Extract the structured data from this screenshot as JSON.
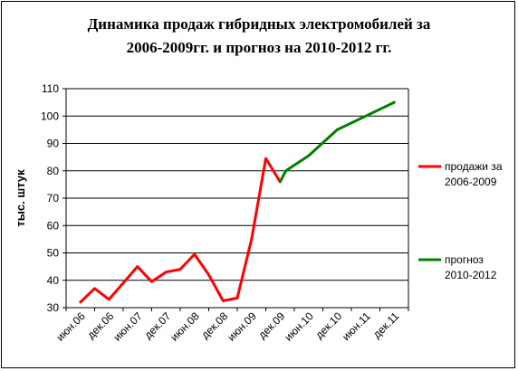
{
  "chart_data": {
    "type": "line",
    "title_line1": "Динамика продаж гибридных электромобилей за",
    "title_line2": "2006-2009гг. и прогноз на 2010-2012 гг.",
    "ylabel": "тыс. штук",
    "xlabel": "",
    "ylim": [
      30,
      110
    ],
    "yticks": [
      30,
      40,
      50,
      60,
      70,
      80,
      90,
      100,
      110
    ],
    "categories": [
      "июн.06",
      "дек.06",
      "июн.07",
      "дек.07",
      "июн.08",
      "дек.08",
      "июн.09",
      "дек.09",
      "июн.10",
      "дек.10",
      "июн.11",
      "дек.11"
    ],
    "grid": "horizontal",
    "legend_position": "right",
    "series": [
      {
        "name": "продажи за 2006-2009",
        "legend_line1": "продажи за",
        "legend_line2": "2006-2009",
        "color": "#ff0000",
        "points": [
          {
            "x": 0.0,
            "y": 32
          },
          {
            "x": 0.5,
            "y": 37
          },
          {
            "x": 1.0,
            "y": 33
          },
          {
            "x": 1.5,
            "y": 39
          },
          {
            "x": 2.0,
            "y": 45
          },
          {
            "x": 2.5,
            "y": 39.5
          },
          {
            "x": 3.0,
            "y": 43
          },
          {
            "x": 3.5,
            "y": 44
          },
          {
            "x": 4.0,
            "y": 49.5
          },
          {
            "x": 4.5,
            "y": 42
          },
          {
            "x": 5.0,
            "y": 32.5
          },
          {
            "x": 5.5,
            "y": 33.5
          },
          {
            "x": 6.0,
            "y": 55
          },
          {
            "x": 6.5,
            "y": 84.5
          },
          {
            "x": 7.0,
            "y": 76
          }
        ]
      },
      {
        "name": "прогноз 2010-2012",
        "legend_line1": "прогноз",
        "legend_line2": "2010-2012",
        "color": "#008000",
        "points": [
          {
            "x": 7.0,
            "y": 76
          },
          {
            "x": 7.2,
            "y": 80
          },
          {
            "x": 8.0,
            "y": 85.5
          },
          {
            "x": 9.0,
            "y": 95
          },
          {
            "x": 10.0,
            "y": 100
          },
          {
            "x": 11.0,
            "y": 105
          }
        ]
      }
    ]
  }
}
